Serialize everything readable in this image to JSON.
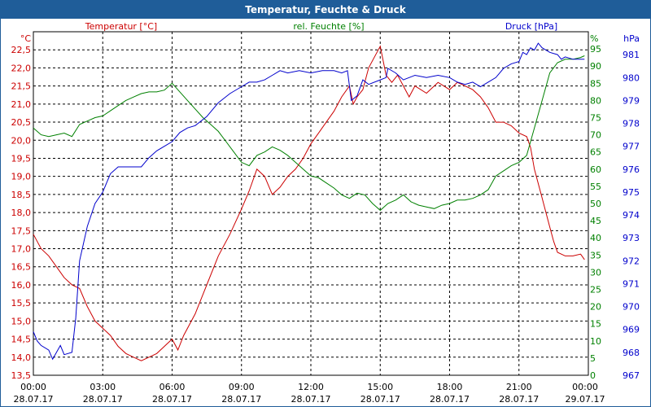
{
  "window": {
    "title": "Temperatur, Feuchte & Druck"
  },
  "colors": {
    "temperature": "#cc0000",
    "humidity": "#008000",
    "pressure": "#0000cc",
    "titlebar": "#1f5d99",
    "grid": "#000000"
  },
  "chart_data": {
    "type": "line",
    "title": "Temperatur, Feuchte & Druck",
    "grid": true,
    "x": {
      "ticks": [
        {
          "time": "00:00",
          "date": "28.07.17"
        },
        {
          "time": "03:00",
          "date": "28.07.17"
        },
        {
          "time": "06:00",
          "date": "28.07.17"
        },
        {
          "time": "09:00",
          "date": "28.07.17"
        },
        {
          "time": "12:00",
          "date": "28.07.17"
        },
        {
          "time": "15:00",
          "date": "28.07.17"
        },
        {
          "time": "18:00",
          "date": "28.07.17"
        },
        {
          "time": "21:00",
          "date": "28.07.17"
        },
        {
          "time": "00:00",
          "date": "29.07.17"
        }
      ]
    },
    "axes": {
      "temperature": {
        "label": "Temperatur [°C]",
        "unit": "°C",
        "min": 13.5,
        "max": 23,
        "step": 0.5,
        "tick_labels": [
          "13,5",
          "14,0",
          "14,5",
          "15,0",
          "15,5",
          "16,0",
          "16,5",
          "17,0",
          "17,5",
          "18,0",
          "18,5",
          "19,0",
          "19,5",
          "20,0",
          "20,5",
          "21,0",
          "21,5",
          "22,0",
          "22,5"
        ]
      },
      "humidity": {
        "label": "rel. Feuchte [%]",
        "unit": "%",
        "min": 0,
        "max": 100,
        "step": 5,
        "tick_labels": [
          "0",
          "5",
          "10",
          "15",
          "20",
          "25",
          "30",
          "35",
          "40",
          "45",
          "50",
          "55",
          "60",
          "65",
          "70",
          "75",
          "80",
          "85",
          "90",
          "95"
        ]
      },
      "pressure": {
        "label": "Druck [hPa]",
        "unit": "hPa",
        "min": 967,
        "max": 982,
        "step": 1,
        "tick_labels": [
          "967",
          "968",
          "969",
          "970",
          "971",
          "972",
          "973",
          "974",
          "975",
          "976",
          "977",
          "978",
          "979",
          "980",
          "981"
        ]
      }
    },
    "series": [
      {
        "name": "Temperatur [°C]",
        "axis": "temperature",
        "color": "#cc0000",
        "points": [
          [
            "28.07.17 00:00",
            17.4
          ],
          [
            "28.07.17 00:20",
            17.0
          ],
          [
            "28.07.17 00:40",
            16.8
          ],
          [
            "28.07.17 01:00",
            16.5
          ],
          [
            "28.07.17 01:20",
            16.2
          ],
          [
            "28.07.17 01:40",
            16.0
          ],
          [
            "28.07.17 02:00",
            15.9
          ],
          [
            "28.07.17 02:20",
            15.4
          ],
          [
            "28.07.17 02:40",
            15.0
          ],
          [
            "28.07.17 03:00",
            14.8
          ],
          [
            "28.07.17 03:20",
            14.6
          ],
          [
            "28.07.17 03:40",
            14.3
          ],
          [
            "28.07.17 04:00",
            14.1
          ],
          [
            "28.07.17 04:20",
            14.0
          ],
          [
            "28.07.17 04:40",
            13.9
          ],
          [
            "28.07.17 05:00",
            14.0
          ],
          [
            "28.07.17 05:20",
            14.1
          ],
          [
            "28.07.17 05:40",
            14.3
          ],
          [
            "28.07.17 06:00",
            14.5
          ],
          [
            "28.07.17 06:15",
            14.2
          ],
          [
            "28.07.17 06:30",
            14.6
          ],
          [
            "28.07.17 07:00",
            15.2
          ],
          [
            "28.07.17 07:30",
            16.0
          ],
          [
            "28.07.17 08:00",
            16.8
          ],
          [
            "28.07.17 08:30",
            17.4
          ],
          [
            "28.07.17 09:00",
            18.1
          ],
          [
            "28.07.17 09:20",
            18.6
          ],
          [
            "28.07.17 09:40",
            19.2
          ],
          [
            "28.07.17 10:00",
            19.0
          ],
          [
            "28.07.17 10:20",
            18.5
          ],
          [
            "28.07.17 10:40",
            18.7
          ],
          [
            "28.07.17 11:00",
            19.0
          ],
          [
            "28.07.17 11:20",
            19.2
          ],
          [
            "28.07.17 11:40",
            19.5
          ],
          [
            "28.07.17 12:00",
            19.9
          ],
          [
            "28.07.17 12:20",
            20.2
          ],
          [
            "28.07.17 12:40",
            20.5
          ],
          [
            "28.07.17 13:00",
            20.8
          ],
          [
            "28.07.17 13:20",
            21.2
          ],
          [
            "28.07.17 13:40",
            21.5
          ],
          [
            "28.07.17 13:50",
            21.0
          ],
          [
            "28.07.17 14:00",
            21.2
          ],
          [
            "28.07.17 14:15",
            21.4
          ],
          [
            "28.07.17 14:30",
            22.0
          ],
          [
            "28.07.17 14:50",
            22.4
          ],
          [
            "28.07.17 15:00",
            22.6
          ],
          [
            "28.07.17 15:15",
            21.8
          ],
          [
            "28.07.17 15:30",
            21.6
          ],
          [
            "28.07.17 15:45",
            21.8
          ],
          [
            "28.07.17 16:00",
            21.5
          ],
          [
            "28.07.17 16:15",
            21.2
          ],
          [
            "28.07.17 16:30",
            21.5
          ],
          [
            "28.07.17 17:00",
            21.3
          ],
          [
            "28.07.17 17:30",
            21.6
          ],
          [
            "28.07.17 18:00",
            21.4
          ],
          [
            "28.07.17 18:20",
            21.6
          ],
          [
            "28.07.17 18:40",
            21.5
          ],
          [
            "28.07.17 19:00",
            21.4
          ],
          [
            "28.07.17 19:20",
            21.2
          ],
          [
            "28.07.17 19:40",
            20.9
          ],
          [
            "28.07.17 20:00",
            20.5
          ],
          [
            "28.07.17 20:20",
            20.5
          ],
          [
            "28.07.17 20:40",
            20.4
          ],
          [
            "28.07.17 21:00",
            20.2
          ],
          [
            "28.07.17 21:20",
            20.1
          ],
          [
            "28.07.17 21:30",
            19.8
          ],
          [
            "28.07.17 21:40",
            19.2
          ],
          [
            "28.07.17 22:00",
            18.4
          ],
          [
            "28.07.17 22:20",
            17.6
          ],
          [
            "28.07.17 22:30",
            17.2
          ],
          [
            "28.07.17 22:40",
            16.9
          ],
          [
            "28.07.17 23:00",
            16.8
          ],
          [
            "28.07.17 23:20",
            16.8
          ],
          [
            "28.07.17 23:40",
            16.85
          ],
          [
            "28.07.17 23:50",
            16.7
          ]
        ]
      },
      {
        "name": "rel. Feuchte [%]",
        "axis": "humidity",
        "color": "#008000",
        "points": [
          [
            "28.07.17 00:00",
            72
          ],
          [
            "28.07.17 00:20",
            70
          ],
          [
            "28.07.17 00:40",
            69.5
          ],
          [
            "28.07.17 01:00",
            70
          ],
          [
            "28.07.17 01:20",
            70.5
          ],
          [
            "28.07.17 01:40",
            69.5
          ],
          [
            "28.07.17 02:00",
            73
          ],
          [
            "28.07.17 02:20",
            74
          ],
          [
            "28.07.17 02:40",
            75
          ],
          [
            "28.07.17 03:00",
            75.5
          ],
          [
            "28.07.17 03:20",
            77
          ],
          [
            "28.07.17 03:40",
            78.5
          ],
          [
            "28.07.17 04:00",
            80
          ],
          [
            "28.07.17 04:20",
            81
          ],
          [
            "28.07.17 04:40",
            82
          ],
          [
            "28.07.17 05:00",
            82.5
          ],
          [
            "28.07.17 05:20",
            82.5
          ],
          [
            "28.07.17 05:40",
            83
          ],
          [
            "28.07.17 06:00",
            85
          ],
          [
            "28.07.17 06:20",
            82.5
          ],
          [
            "28.07.17 06:40",
            80
          ],
          [
            "28.07.17 07:00",
            77.5
          ],
          [
            "28.07.17 07:20",
            75
          ],
          [
            "28.07.17 07:40",
            73
          ],
          [
            "28.07.17 08:00",
            71
          ],
          [
            "28.07.17 08:20",
            68
          ],
          [
            "28.07.17 08:40",
            65
          ],
          [
            "28.07.17 09:00",
            62
          ],
          [
            "28.07.17 09:20",
            61
          ],
          [
            "28.07.17 09:40",
            64
          ],
          [
            "28.07.17 10:00",
            65
          ],
          [
            "28.07.17 10:20",
            66.5
          ],
          [
            "28.07.17 10:40",
            65.5
          ],
          [
            "28.07.17 11:00",
            64
          ],
          [
            "28.07.17 11:20",
            62
          ],
          [
            "28.07.17 11:40",
            60
          ],
          [
            "28.07.17 12:00",
            58
          ],
          [
            "28.07.17 12:20",
            57.5
          ],
          [
            "28.07.17 12:40",
            56
          ],
          [
            "28.07.17 13:00",
            54.5
          ],
          [
            "28.07.17 13:20",
            52.5
          ],
          [
            "28.07.17 13:40",
            51.5
          ],
          [
            "28.07.17 14:00",
            53
          ],
          [
            "28.07.17 14:20",
            52.5
          ],
          [
            "28.07.17 14:40",
            50
          ],
          [
            "28.07.17 15:00",
            48
          ],
          [
            "28.07.17 15:20",
            50
          ],
          [
            "28.07.17 15:40",
            51
          ],
          [
            "28.07.17 16:00",
            52.5
          ],
          [
            "28.07.17 16:20",
            50.5
          ],
          [
            "28.07.17 16:40",
            49.5
          ],
          [
            "28.07.17 17:00",
            49
          ],
          [
            "28.07.17 17:20",
            48.5
          ],
          [
            "28.07.17 17:40",
            49.5
          ],
          [
            "28.07.17 18:00",
            50
          ],
          [
            "28.07.17 18:20",
            51
          ],
          [
            "28.07.17 18:40",
            51
          ],
          [
            "28.07.17 19:00",
            51.5
          ],
          [
            "28.07.17 19:20",
            52.5
          ],
          [
            "28.07.17 19:40",
            54
          ],
          [
            "28.07.17 20:00",
            58
          ],
          [
            "28.07.17 20:20",
            59.5
          ],
          [
            "28.07.17 20:40",
            61
          ],
          [
            "28.07.17 21:00",
            62
          ],
          [
            "28.07.17 21:20",
            64
          ],
          [
            "28.07.17 21:40",
            72
          ],
          [
            "28.07.17 22:00",
            80
          ],
          [
            "28.07.17 22:20",
            88
          ],
          [
            "28.07.17 22:40",
            91
          ],
          [
            "28.07.17 23:00",
            92
          ],
          [
            "28.07.17 23:20",
            92
          ],
          [
            "28.07.17 23:40",
            92.5
          ],
          [
            "28.07.17 23:50",
            93
          ]
        ]
      },
      {
        "name": "Druck [hPa]",
        "axis": "pressure",
        "color": "#0000cc",
        "points": [
          [
            "28.07.17 00:00",
            968.9
          ],
          [
            "28.07.17 00:10",
            968.5
          ],
          [
            "28.07.17 00:20",
            968.3
          ],
          [
            "28.07.17 00:40",
            968.1
          ],
          [
            "28.07.17 00:50",
            967.7
          ],
          [
            "28.07.17 01:00",
            968.0
          ],
          [
            "28.07.17 01:10",
            968.3
          ],
          [
            "28.07.17 01:20",
            967.9
          ],
          [
            "28.07.17 01:40",
            968.0
          ],
          [
            "28.07.17 01:50",
            969.5
          ],
          [
            "28.07.17 02:00",
            972.0
          ],
          [
            "28.07.17 02:20",
            973.5
          ],
          [
            "28.07.17 02:40",
            974.5
          ],
          [
            "28.07.17 03:00",
            975.0
          ],
          [
            "28.07.17 03:20",
            975.8
          ],
          [
            "28.07.17 03:40",
            976.1
          ],
          [
            "28.07.17 04:00",
            976.1
          ],
          [
            "28.07.17 04:40",
            976.1
          ],
          [
            "28.07.17 05:00",
            976.5
          ],
          [
            "28.07.17 05:20",
            976.8
          ],
          [
            "28.07.17 05:40",
            977.0
          ],
          [
            "28.07.17 06:00",
            977.2
          ],
          [
            "28.07.17 06:20",
            977.6
          ],
          [
            "28.07.17 06:40",
            977.8
          ],
          [
            "28.07.17 07:00",
            977.9
          ],
          [
            "28.07.17 07:30",
            978.3
          ],
          [
            "28.07.17 08:00",
            978.9
          ],
          [
            "28.07.17 08:30",
            979.3
          ],
          [
            "28.07.17 09:00",
            979.6
          ],
          [
            "28.07.17 09:20",
            979.8
          ],
          [
            "28.07.17 09:40",
            979.8
          ],
          [
            "28.07.17 10:00",
            979.9
          ],
          [
            "28.07.17 10:20",
            980.1
          ],
          [
            "28.07.17 10:40",
            980.3
          ],
          [
            "28.07.17 11:00",
            980.2
          ],
          [
            "28.07.17 11:30",
            980.3
          ],
          [
            "28.07.17 12:00",
            980.2
          ],
          [
            "28.07.17 12:30",
            980.3
          ],
          [
            "28.07.17 13:00",
            980.3
          ],
          [
            "28.07.17 13:20",
            980.2
          ],
          [
            "28.07.17 13:35",
            980.3
          ],
          [
            "28.07.17 13:45",
            979.0
          ],
          [
            "28.07.17 14:00",
            979.2
          ],
          [
            "28.07.17 14:15",
            979.9
          ],
          [
            "28.07.17 14:30",
            979.7
          ],
          [
            "28.07.17 15:00",
            979.9
          ],
          [
            "28.07.17 15:15",
            980.0
          ],
          [
            "28.07.17 15:20",
            980.4
          ],
          [
            "28.07.17 15:40",
            980.2
          ],
          [
            "28.07.17 16:00",
            979.9
          ],
          [
            "28.07.17 16:30",
            980.1
          ],
          [
            "28.07.17 17:00",
            980.0
          ],
          [
            "28.07.17 17:30",
            980.1
          ],
          [
            "28.07.17 18:00",
            980.0
          ],
          [
            "28.07.17 18:20",
            979.8
          ],
          [
            "28.07.17 18:40",
            979.7
          ],
          [
            "28.07.17 19:00",
            979.8
          ],
          [
            "28.07.17 19:20",
            979.6
          ],
          [
            "28.07.17 19:40",
            979.8
          ],
          [
            "28.07.17 20:00",
            980.0
          ],
          [
            "28.07.17 20:20",
            980.4
          ],
          [
            "28.07.17 20:40",
            980.6
          ],
          [
            "28.07.17 21:00",
            980.7
          ],
          [
            "28.07.17 21:10",
            981.1
          ],
          [
            "28.07.17 21:20",
            981.0
          ],
          [
            "28.07.17 21:30",
            981.3
          ],
          [
            "28.07.17 21:40",
            981.2
          ],
          [
            "28.07.17 21:50",
            981.5
          ],
          [
            "28.07.17 22:00",
            981.3
          ],
          [
            "28.07.17 22:20",
            981.1
          ],
          [
            "28.07.17 22:40",
            981.0
          ],
          [
            "28.07.17 22:50",
            980.8
          ],
          [
            "28.07.17 23:00",
            980.9
          ],
          [
            "28.07.17 23:20",
            980.8
          ],
          [
            "28.07.17 23:40",
            980.8
          ],
          [
            "28.07.17 23:50",
            980.8
          ]
        ]
      }
    ]
  }
}
